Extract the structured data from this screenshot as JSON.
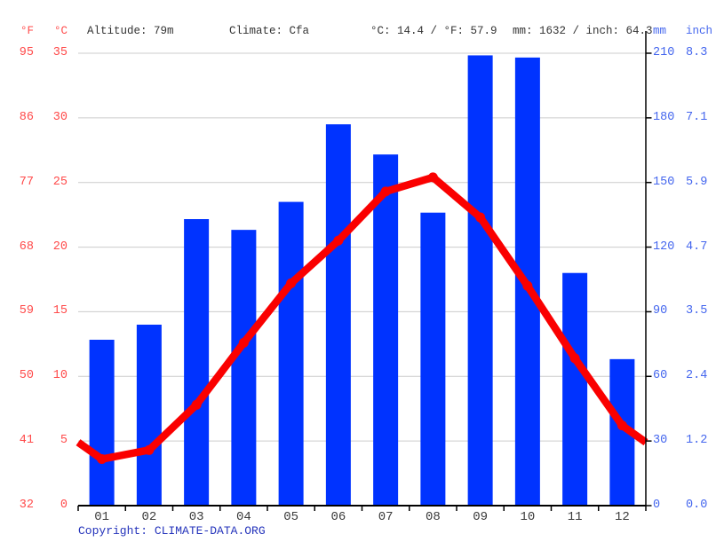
{
  "header": {
    "f_label": "°F",
    "c_label": "°C",
    "altitude": "Altitude: 79m",
    "climate": "Climate: Cfa",
    "temp_summary": "°C: 14.4 / °F: 57.9",
    "precip_summary": "mm: 1632 / inch: 64.3",
    "mm_label": "mm",
    "inch_label": "inch"
  },
  "footer": {
    "copyright_label": "Copyright: ",
    "link_text": "CLIMATE-DATA.ORG"
  },
  "colors": {
    "bar_blue": "#0033ff",
    "line_red": "#fa0000",
    "left_axis_red": "#ff4a4a",
    "right_axis_blue": "#4466ee",
    "month_text": "#3a3a3a",
    "header_text": "#333333",
    "gridline": "#cccccc",
    "axis_line": "#000000",
    "copyright_blue": "#2433bb"
  },
  "chart_data": {
    "type": "bar+line",
    "categories": [
      "01",
      "02",
      "03",
      "04",
      "05",
      "06",
      "07",
      "08",
      "09",
      "10",
      "11",
      "12"
    ],
    "series": [
      {
        "name": "Precipitation",
        "unit": "mm",
        "type": "bar",
        "values": [
          77,
          84,
          133,
          128,
          141,
          177,
          163,
          136,
          209,
          208,
          108,
          68
        ]
      },
      {
        "name": "Temperature",
        "unit": "°C",
        "type": "line",
        "values": [
          3.6,
          4.3,
          7.8,
          12.6,
          17.2,
          20.5,
          24.3,
          25.4,
          22.3,
          17.0,
          11.4,
          6.2
        ]
      }
    ],
    "left_axis": {
      "f_ticks": [
        "95",
        "86",
        "77",
        "68",
        "59",
        "50",
        "41",
        "32"
      ],
      "c_ticks": [
        "35",
        "30",
        "25",
        "20",
        "15",
        "10",
        "5",
        "0"
      ],
      "c_range": [
        0,
        35
      ]
    },
    "right_axis": {
      "mm_ticks": [
        "210",
        "180",
        "150",
        "120",
        "90",
        "60",
        "30",
        "0"
      ],
      "inch_ticks": [
        "8.3",
        "7.1",
        "5.9",
        "4.7",
        "3.5",
        "2.4",
        "1.2",
        "0.0"
      ],
      "mm_range": [
        0,
        210
      ]
    },
    "grid": true,
    "legend_position": "none",
    "annual_mean_temp_c": 14.4,
    "annual_precip_mm": 1632
  }
}
